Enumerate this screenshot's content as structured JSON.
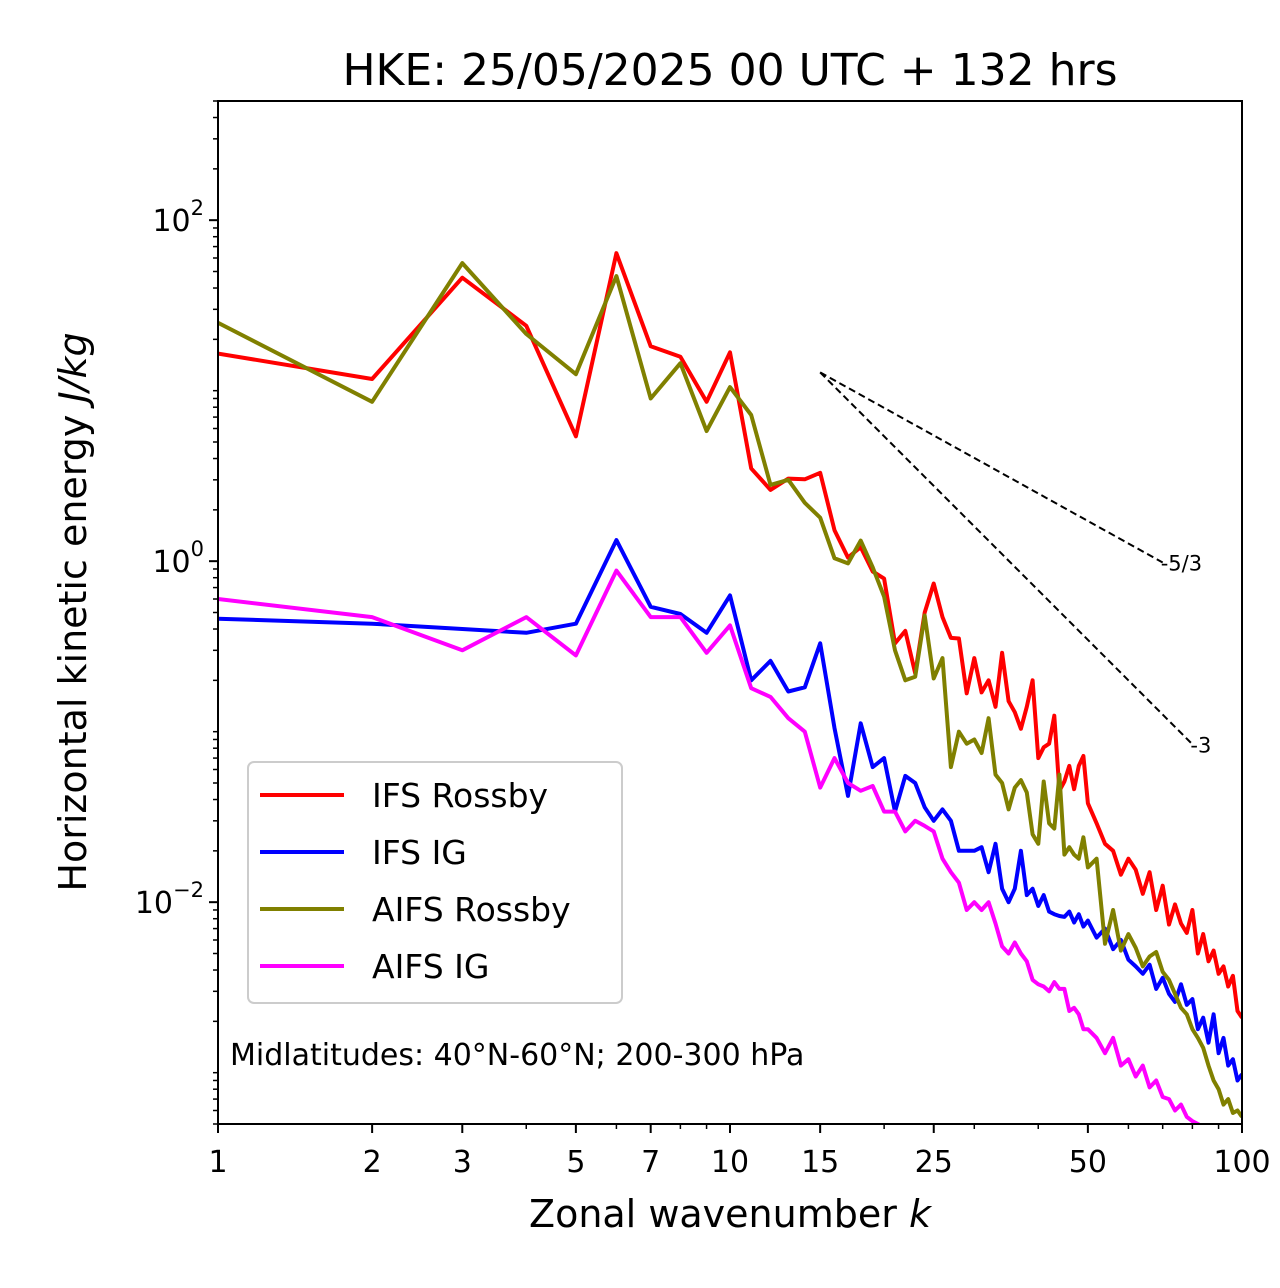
{
  "chart_data": {
    "type": "line",
    "title": "HKE: 25/05/2025 00 UTC + 132 hrs",
    "xlabel_text": "Zonal wavenumber ",
    "xlabel_var": "k",
    "ylabel_text": "Horizontal kinetic energy ",
    "ylabel_unit": "J/kg",
    "x_scale": "log",
    "y_scale": "log",
    "xlim": [
      1,
      100
    ],
    "ylim": [
      0.0005,
      500
    ],
    "x_ticks": [
      {
        "value": 1,
        "label": "1"
      },
      {
        "value": 2,
        "label": "2"
      },
      {
        "value": 3,
        "label": "3"
      },
      {
        "value": 5,
        "label": "5"
      },
      {
        "value": 7,
        "label": "7"
      },
      {
        "value": 10,
        "label": "10"
      },
      {
        "value": 15,
        "label": "15"
      },
      {
        "value": 25,
        "label": "25"
      },
      {
        "value": 50,
        "label": "50"
      },
      {
        "value": 100,
        "label": "100"
      }
    ],
    "y_ticks": [
      {
        "value": 100,
        "base": "10",
        "exp": "2"
      },
      {
        "value": 1,
        "base": "10",
        "exp": "0"
      },
      {
        "value": 0.01,
        "base": "10",
        "exp": "−2"
      }
    ],
    "grid": false,
    "legend_position": "lower-left",
    "annotation": "Midlatitudes: 40°N-60°N; 200-300 hPa",
    "reference_slopes": [
      {
        "label": "-5/3",
        "slope": -1.6667,
        "x_start": 15,
        "y_start": 12.8,
        "x_end": 70
      },
      {
        "label": "-3",
        "slope": -3,
        "x_start": 15,
        "y_start": 12.8,
        "x_end": 80
      }
    ],
    "series": [
      {
        "name": "IFS Rossby",
        "color": "#ff0000",
        "x": [
          1,
          2,
          3,
          4,
          5,
          6,
          7,
          8,
          9,
          10,
          11,
          12,
          13,
          14,
          15,
          16,
          17,
          18,
          19,
          20,
          21,
          22,
          23,
          24,
          25,
          26,
          27,
          28,
          29,
          30,
          31,
          32,
          33,
          34,
          35,
          36,
          37,
          38,
          39,
          40,
          41,
          42,
          43,
          44,
          45,
          46,
          47,
          48,
          49,
          50,
          52,
          54,
          56,
          58,
          60,
          62,
          64,
          66,
          68,
          70,
          72,
          74,
          76,
          78,
          80,
          82,
          84,
          86,
          88,
          90,
          92,
          94,
          96,
          98,
          100
        ],
        "y": [
          16.5,
          11.7,
          46,
          24,
          5.4,
          64,
          18.2,
          15.8,
          8.6,
          16.8,
          3.5,
          2.62,
          3.05,
          3.02,
          3.3,
          1.52,
          1.05,
          1.21,
          0.87,
          0.79,
          0.33,
          0.39,
          0.22,
          0.5,
          0.74,
          0.47,
          0.355,
          0.352,
          0.168,
          0.27,
          0.17,
          0.2,
          0.14,
          0.29,
          0.151,
          0.13,
          0.104,
          0.14,
          0.2,
          0.07,
          0.081,
          0.085,
          0.124,
          0.045,
          0.051,
          0.063,
          0.046,
          0.063,
          0.072,
          0.038,
          0.029,
          0.022,
          0.02,
          0.0145,
          0.018,
          0.0155,
          0.0112,
          0.015,
          0.009,
          0.0125,
          0.0074,
          0.0097,
          0.0075,
          0.0066,
          0.009,
          0.005,
          0.0065,
          0.0045,
          0.0052,
          0.0038,
          0.0042,
          0.0032,
          0.0037,
          0.0023,
          0.0021
        ]
      },
      {
        "name": "IFS IG",
        "color": "#0000ff",
        "x": [
          1,
          2,
          3,
          4,
          5,
          6,
          7,
          8,
          9,
          10,
          11,
          12,
          13,
          14,
          15,
          16,
          17,
          18,
          19,
          20,
          21,
          22,
          23,
          24,
          25,
          26,
          27,
          28,
          29,
          30,
          31,
          32,
          33,
          34,
          35,
          36,
          37,
          38,
          39,
          40,
          41,
          42,
          43,
          44,
          45,
          46,
          47,
          48,
          49,
          50,
          52,
          54,
          56,
          58,
          60,
          62,
          64,
          66,
          68,
          70,
          72,
          74,
          76,
          78,
          80,
          82,
          84,
          86,
          88,
          90,
          92,
          94,
          96,
          98,
          100
        ],
        "y": [
          0.46,
          0.43,
          0.4,
          0.38,
          0.43,
          1.33,
          0.54,
          0.49,
          0.38,
          0.63,
          0.2,
          0.26,
          0.172,
          0.182,
          0.33,
          0.105,
          0.042,
          0.112,
          0.062,
          0.07,
          0.034,
          0.055,
          0.05,
          0.036,
          0.03,
          0.035,
          0.03,
          0.02,
          0.02,
          0.02,
          0.021,
          0.015,
          0.022,
          0.012,
          0.01,
          0.012,
          0.02,
          0.011,
          0.012,
          0.0095,
          0.011,
          0.0088,
          0.0085,
          0.0083,
          0.0082,
          0.0088,
          0.0076,
          0.0085,
          0.0072,
          0.0078,
          0.0062,
          0.007,
          0.0053,
          0.006,
          0.0046,
          0.0042,
          0.0038,
          0.0043,
          0.0031,
          0.0036,
          0.0029,
          0.0026,
          0.0033,
          0.0025,
          0.0027,
          0.0018,
          0.0021,
          0.0015,
          0.0022,
          0.0013,
          0.0016,
          0.0011,
          0.0012,
          0.0009,
          0.00098
        ]
      },
      {
        "name": "AIFS Rossby",
        "color": "#808000",
        "x": [
          1,
          2,
          3,
          4,
          5,
          6,
          7,
          8,
          9,
          10,
          11,
          12,
          13,
          14,
          15,
          16,
          17,
          18,
          19,
          20,
          21,
          22,
          23,
          24,
          25,
          26,
          27,
          28,
          29,
          30,
          31,
          32,
          33,
          34,
          35,
          36,
          37,
          38,
          39,
          40,
          41,
          42,
          43,
          44,
          45,
          46,
          47,
          48,
          49,
          50,
          52,
          54,
          56,
          58,
          60,
          62,
          64,
          66,
          68,
          70,
          72,
          74,
          76,
          78,
          80,
          82,
          84,
          86,
          88,
          90,
          92,
          94,
          96,
          98,
          100
        ],
        "y": [
          25,
          8.6,
          56,
          21.5,
          12.5,
          47,
          9,
          14.5,
          5.8,
          10.5,
          7.2,
          2.8,
          3.0,
          2.2,
          1.8,
          1.04,
          0.97,
          1.32,
          0.92,
          0.62,
          0.3,
          0.2,
          0.21,
          0.48,
          0.205,
          0.27,
          0.062,
          0.1,
          0.085,
          0.09,
          0.075,
          0.12,
          0.056,
          0.05,
          0.035,
          0.047,
          0.052,
          0.044,
          0.025,
          0.022,
          0.051,
          0.029,
          0.027,
          0.056,
          0.019,
          0.021,
          0.019,
          0.018,
          0.024,
          0.016,
          0.018,
          0.0057,
          0.009,
          0.0052,
          0.0065,
          0.0054,
          0.0042,
          0.0048,
          0.0051,
          0.0039,
          0.0035,
          0.0029,
          0.0024,
          0.0022,
          0.0018,
          0.0016,
          0.0014,
          0.0011,
          0.0009,
          0.0008,
          0.00065,
          0.0007,
          0.00058,
          0.0006,
          0.00055
        ]
      },
      {
        "name": "AIFS IG",
        "color": "#ff00ff",
        "x": [
          1,
          2,
          3,
          4,
          5,
          6,
          7,
          8,
          9,
          10,
          11,
          12,
          13,
          14,
          15,
          16,
          17,
          18,
          19,
          20,
          21,
          22,
          23,
          24,
          25,
          26,
          27,
          28,
          29,
          30,
          31,
          32,
          33,
          34,
          35,
          36,
          37,
          38,
          39,
          40,
          41,
          42,
          43,
          44,
          45,
          46,
          47,
          48,
          49,
          50,
          52,
          54,
          56,
          58,
          60,
          62,
          64,
          66,
          68,
          70,
          72,
          74,
          76,
          78,
          80,
          82,
          84,
          86,
          88,
          90,
          92,
          94,
          96,
          98,
          100
        ],
        "y": [
          0.6,
          0.47,
          0.3,
          0.47,
          0.28,
          0.88,
          0.47,
          0.47,
          0.29,
          0.42,
          0.18,
          0.16,
          0.12,
          0.1,
          0.047,
          0.07,
          0.05,
          0.045,
          0.048,
          0.034,
          0.034,
          0.026,
          0.03,
          0.028,
          0.026,
          0.018,
          0.015,
          0.013,
          0.009,
          0.01,
          0.009,
          0.01,
          0.0075,
          0.0055,
          0.005,
          0.0058,
          0.005,
          0.0045,
          0.0035,
          0.0033,
          0.0032,
          0.003,
          0.0034,
          0.0031,
          0.0031,
          0.0023,
          0.0024,
          0.0022,
          0.0018,
          0.0018,
          0.0016,
          0.0013,
          0.0016,
          0.0011,
          0.0012,
          0.00095,
          0.0011,
          0.00082,
          0.0009,
          0.00072,
          0.0007,
          0.0006,
          0.00065,
          0.00055,
          0.00052,
          0.0005,
          0.00048,
          0.00046,
          0.00045,
          0.00043,
          0.00041,
          0.0004,
          0.00038,
          0.00036,
          0.00035
        ]
      }
    ]
  }
}
